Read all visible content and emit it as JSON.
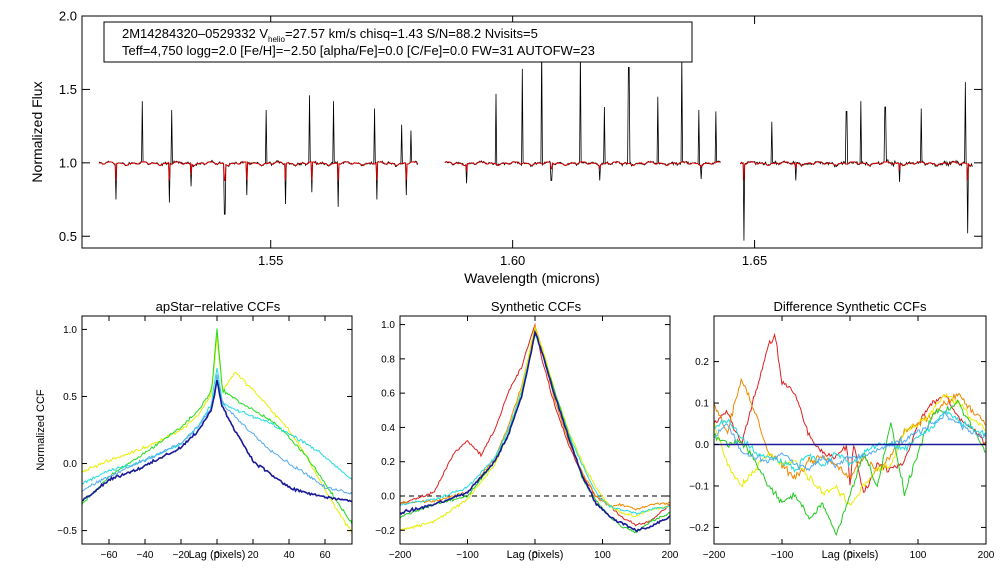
{
  "chart_data": [
    {
      "type": "line",
      "id": "spectrum",
      "info_line1_pre": "2M14284320–0529332  V",
      "info_line1_sub": "helio",
      "info_line1_post": "=27.57 km/s  chisq=1.43  S/N=88.2  Nvisits=5",
      "info_line2": "Teff=4,750 logg=2.0 [Fe/H]=−2.50 [alpha/Fe]=0.0 [C/Fe]=0.0 FW=31 AUTOFW=23",
      "xlabel": "Wavelength (microns)",
      "ylabel": "Normalized Flux",
      "xlim": [
        1.511,
        1.697
      ],
      "ylim": [
        0.42,
        2.0
      ],
      "xticks": [
        1.55,
        1.6,
        1.65
      ],
      "xtick_labels": [
        "1.55",
        "1.60",
        "1.65"
      ],
      "yticks": [
        0.5,
        1.0,
        1.5,
        2.0
      ],
      "ytick_labels": [
        "0.5",
        "1.0",
        "1.5",
        "2.0"
      ],
      "chips": [
        [
          1.5145,
          1.5805
        ],
        [
          1.586,
          1.643
        ],
        [
          1.647,
          1.695
        ]
      ],
      "series": [
        {
          "name": "observed",
          "color": "#000000"
        },
        {
          "name": "model",
          "color": "#d40000"
        }
      ],
      "emission_spikes": [
        [
          1.5235,
          1.42
        ],
        [
          1.5295,
          1.36
        ],
        [
          1.5335,
          1.43
        ],
        [
          1.5405,
          1.35
        ],
        [
          1.549,
          1.36
        ],
        [
          1.553,
          1.38
        ],
        [
          1.558,
          1.46
        ],
        [
          1.563,
          1.42
        ],
        [
          1.5715,
          1.37
        ],
        [
          1.577,
          1.26
        ],
        [
          1.579,
          1.22
        ],
        [
          1.5965,
          1.47
        ],
        [
          1.602,
          1.64
        ],
        [
          1.606,
          1.8
        ],
        [
          1.614,
          1.76
        ],
        [
          1.619,
          1.38
        ],
        [
          1.624,
          1.65
        ],
        [
          1.63,
          1.45
        ],
        [
          1.635,
          1.73
        ],
        [
          1.6385,
          1.36
        ],
        [
          1.642,
          1.35
        ],
        [
          1.6535,
          1.28
        ],
        [
          1.669,
          1.35
        ],
        [
          1.672,
          1.42
        ],
        [
          1.677,
          1.38
        ],
        [
          1.6845,
          1.37
        ],
        [
          1.6935,
          1.55
        ]
      ],
      "absorption_spikes": [
        [
          1.518,
          0.75
        ],
        [
          1.529,
          0.73
        ],
        [
          1.5335,
          0.84
        ],
        [
          1.5405,
          0.65
        ],
        [
          1.545,
          0.78
        ],
        [
          1.553,
          0.72
        ],
        [
          1.5585,
          0.8
        ],
        [
          1.564,
          0.7
        ],
        [
          1.572,
          0.75
        ],
        [
          1.578,
          0.78
        ],
        [
          1.5905,
          0.86
        ],
        [
          1.608,
          0.88
        ],
        [
          1.618,
          0.88
        ],
        [
          1.639,
          0.89
        ],
        [
          1.6478,
          0.47
        ],
        [
          1.6585,
          0.88
        ],
        [
          1.68,
          0.87
        ],
        [
          1.694,
          0.52
        ]
      ]
    },
    {
      "type": "line",
      "id": "apstar_ccf",
      "title": "apStar−relative CCFs",
      "xlabel": "Lag (pixels)",
      "ylabel": "Normalized CCF",
      "xlim": [
        -75,
        75
      ],
      "ylim": [
        -0.6,
        1.1
      ],
      "xticks": [
        -60,
        -40,
        -20,
        0,
        20,
        40,
        60
      ],
      "xtick_labels": [
        "−60",
        "−40",
        "−20",
        "0",
        "20",
        "40",
        "60"
      ],
      "yticks": [
        -0.5,
        0.0,
        0.5,
        1.0
      ],
      "ytick_labels": [
        "−0.5",
        "0.0",
        "0.5",
        "1.0"
      ],
      "series": [
        {
          "name": "yellow",
          "color": "#e8ee00",
          "x": [
            -75,
            -60,
            -40,
            -20,
            -10,
            -3,
            0,
            3,
            6,
            10,
            20,
            30,
            40,
            50,
            60,
            75
          ],
          "y": [
            -0.06,
            0.02,
            0.12,
            0.25,
            0.37,
            0.52,
            0.95,
            0.55,
            0.6,
            0.68,
            0.55,
            0.4,
            0.25,
            0.05,
            -0.2,
            -0.52
          ]
        },
        {
          "name": "green",
          "color": "#22dd22",
          "x": [
            -75,
            -60,
            -40,
            -20,
            -10,
            -3,
            0,
            3,
            10,
            20,
            30,
            40,
            50,
            60,
            75
          ],
          "y": [
            -0.3,
            -0.1,
            0.08,
            0.27,
            0.4,
            0.55,
            1.0,
            0.55,
            0.48,
            0.4,
            0.32,
            0.2,
            0.05,
            -0.15,
            -0.45
          ]
        },
        {
          "name": "cyan",
          "color": "#22dddd",
          "x": [
            -75,
            -60,
            -40,
            -20,
            -10,
            -3,
            0,
            3,
            10,
            20,
            30,
            40,
            50,
            60,
            75
          ],
          "y": [
            -0.15,
            -0.05,
            0.02,
            0.15,
            0.28,
            0.45,
            0.72,
            0.45,
            0.4,
            0.35,
            0.3,
            0.22,
            0.15,
            0.05,
            -0.12
          ]
        },
        {
          "name": "sky",
          "color": "#55aaee",
          "x": [
            -75,
            -60,
            -40,
            -20,
            -10,
            -3,
            0,
            3,
            10,
            20,
            30,
            40,
            50,
            60,
            75
          ],
          "y": [
            -0.2,
            -0.1,
            0.03,
            0.15,
            0.28,
            0.42,
            0.65,
            0.45,
            0.35,
            0.22,
            0.1,
            0.0,
            -0.08,
            -0.18,
            -0.22
          ]
        },
        {
          "name": "navy",
          "color": "#1a1a99",
          "x": [
            -75,
            -60,
            -40,
            -20,
            -10,
            -3,
            0,
            3,
            10,
            20,
            30,
            40,
            50,
            60,
            75
          ],
          "y": [
            -0.28,
            -0.12,
            -0.02,
            0.12,
            0.25,
            0.4,
            0.62,
            0.42,
            0.25,
            0.02,
            -0.08,
            -0.18,
            -0.22,
            -0.25,
            -0.28
          ]
        }
      ]
    },
    {
      "type": "line",
      "id": "synthetic_ccf",
      "title": "Synthetic CCFs",
      "xlabel": "Lag (pixels)",
      "ylabel": "",
      "xlim": [
        -200,
        200
      ],
      "ylim": [
        -0.28,
        1.05
      ],
      "xticks": [
        -200,
        -100,
        0,
        100,
        200
      ],
      "xtick_labels": [
        "−200",
        "−100",
        "0",
        "100",
        "200"
      ],
      "yticks": [
        -0.2,
        0.0,
        0.2,
        0.4,
        0.6,
        0.8,
        1.0
      ],
      "ytick_labels": [
        "−0.2",
        "0.0",
        "0.2",
        "0.4",
        "0.6",
        "0.8",
        "1.0"
      ],
      "zero_line": 0.0,
      "series": [
        {
          "name": "red",
          "color": "#dd2222",
          "x": [
            -200,
            -150,
            -120,
            -100,
            -80,
            -60,
            -40,
            -20,
            -5,
            0,
            10,
            30,
            50,
            70,
            90,
            110,
            130,
            150,
            170,
            200
          ],
          "y": [
            -0.05,
            0.02,
            0.25,
            0.32,
            0.24,
            0.38,
            0.6,
            0.75,
            0.94,
            1.0,
            0.8,
            0.52,
            0.3,
            0.12,
            0.0,
            -0.05,
            -0.13,
            -0.17,
            -0.15,
            -0.05
          ]
        },
        {
          "name": "orange",
          "color": "#ee8800",
          "x": [
            -200,
            -150,
            -100,
            -60,
            -40,
            -20,
            -5,
            0,
            10,
            30,
            50,
            70,
            90,
            110,
            130,
            150,
            170,
            200
          ],
          "y": [
            -0.04,
            -0.03,
            0.02,
            0.22,
            0.4,
            0.64,
            0.88,
            1.0,
            0.86,
            0.55,
            0.32,
            0.14,
            0.0,
            -0.06,
            -0.05,
            -0.08,
            -0.05,
            -0.04
          ]
        },
        {
          "name": "yellow",
          "color": "#e8ee00",
          "x": [
            -200,
            -150,
            -100,
            -60,
            -40,
            -20,
            -5,
            0,
            10,
            30,
            50,
            70,
            90,
            110,
            130,
            150,
            170,
            200
          ],
          "y": [
            -0.2,
            -0.15,
            -0.02,
            0.18,
            0.36,
            0.62,
            0.9,
            0.98,
            0.88,
            0.6,
            0.38,
            0.2,
            0.05,
            -0.06,
            -0.1,
            -0.12,
            -0.08,
            -0.06
          ]
        },
        {
          "name": "green",
          "color": "#22cc22",
          "x": [
            -200,
            -150,
            -100,
            -60,
            -40,
            -20,
            -5,
            0,
            10,
            30,
            50,
            70,
            90,
            110,
            130,
            150,
            170,
            200
          ],
          "y": [
            -0.12,
            -0.05,
            0.0,
            0.2,
            0.36,
            0.58,
            0.86,
            0.95,
            0.85,
            0.6,
            0.36,
            0.1,
            -0.02,
            -0.12,
            -0.18,
            -0.21,
            -0.15,
            -0.1
          ]
        },
        {
          "name": "cyan",
          "color": "#22dddd",
          "x": [
            -200,
            -150,
            -100,
            -60,
            -40,
            -20,
            -5,
            0,
            10,
            30,
            50,
            70,
            90,
            110,
            130,
            150,
            170,
            200
          ],
          "y": [
            -0.05,
            -0.02,
            0.05,
            0.22,
            0.38,
            0.6,
            0.86,
            0.95,
            0.84,
            0.58,
            0.36,
            0.18,
            0.02,
            -0.06,
            -0.08,
            -0.1,
            -0.08,
            -0.06
          ]
        },
        {
          "name": "navy",
          "color": "#1a1a99",
          "x": [
            -200,
            -150,
            -100,
            -60,
            -40,
            -20,
            -5,
            0,
            10,
            30,
            50,
            70,
            90,
            110,
            130,
            150,
            170,
            200
          ],
          "y": [
            -0.1,
            -0.05,
            0.02,
            0.2,
            0.35,
            0.58,
            0.85,
            0.96,
            0.84,
            0.58,
            0.34,
            0.12,
            -0.04,
            -0.12,
            -0.16,
            -0.2,
            -0.18,
            -0.12
          ]
        }
      ]
    },
    {
      "type": "line",
      "id": "diff_synthetic_ccf",
      "title": "Difference Synthetic CCFs",
      "xlabel": "Lag (pixels)",
      "ylabel": "",
      "xlim": [
        -200,
        200
      ],
      "ylim": [
        -0.24,
        0.31
      ],
      "xticks": [
        -200,
        -100,
        0,
        100,
        200
      ],
      "xtick_labels": [
        "−200",
        "−100",
        "0",
        "100",
        "200"
      ],
      "yticks": [
        -0.2,
        -0.1,
        0.0,
        0.1,
        0.2
      ],
      "ytick_labels": [
        "−0.2",
        "−0.1",
        "0.0",
        "0.1",
        "0.2"
      ],
      "zero_line": 0.0,
      "series": [
        {
          "name": "red",
          "color": "#dd2222",
          "x": [
            -200,
            -180,
            -160,
            -140,
            -120,
            -110,
            -100,
            -80,
            -60,
            -40,
            -20,
            -5,
            0,
            5,
            20,
            40,
            60,
            80,
            100,
            120,
            140,
            160,
            180,
            200
          ],
          "y": [
            0.05,
            0.08,
            0.0,
            0.12,
            0.24,
            0.26,
            0.15,
            0.12,
            0.02,
            -0.02,
            -0.03,
            0.0,
            -0.1,
            0.0,
            -0.12,
            -0.05,
            -0.06,
            -0.04,
            0.05,
            0.1,
            0.12,
            0.06,
            0.04,
            0.0
          ]
        },
        {
          "name": "orange",
          "color": "#ee8800",
          "x": [
            -200,
            -180,
            -160,
            -140,
            -120,
            -100,
            -80,
            -60,
            -40,
            -20,
            0,
            20,
            40,
            60,
            80,
            100,
            120,
            140,
            160,
            180,
            200
          ],
          "y": [
            0.1,
            0.03,
            0.16,
            0.08,
            -0.02,
            -0.05,
            -0.08,
            -0.04,
            -0.03,
            -0.05,
            -0.08,
            -0.03,
            -0.06,
            -0.03,
            0.03,
            0.05,
            0.07,
            0.1,
            0.12,
            0.08,
            0.05
          ]
        },
        {
          "name": "yellow",
          "color": "#e8ee00",
          "x": [
            -200,
            -180,
            -160,
            -140,
            -120,
            -100,
            -80,
            -60,
            -40,
            -20,
            0,
            20,
            40,
            60,
            80,
            100,
            120,
            140,
            160,
            180,
            200
          ],
          "y": [
            0.05,
            -0.05,
            -0.1,
            -0.06,
            -0.02,
            -0.05,
            -0.04,
            -0.08,
            -0.12,
            -0.1,
            -0.15,
            -0.1,
            -0.06,
            -0.05,
            0.03,
            0.05,
            0.08,
            0.12,
            0.1,
            0.06,
            0.04
          ]
        },
        {
          "name": "green",
          "color": "#22cc22",
          "x": [
            -200,
            -180,
            -160,
            -140,
            -120,
            -100,
            -80,
            -60,
            -40,
            -20,
            0,
            20,
            40,
            60,
            80,
            100,
            120,
            140,
            160,
            180,
            200
          ],
          "y": [
            0.02,
            0.0,
            0.01,
            -0.04,
            -0.1,
            -0.14,
            -0.12,
            -0.18,
            -0.14,
            -0.22,
            -0.12,
            -0.02,
            -0.1,
            0.05,
            -0.12,
            -0.02,
            0.07,
            0.08,
            0.1,
            0.04,
            -0.02
          ]
        },
        {
          "name": "cyan",
          "color": "#22dddd",
          "x": [
            -200,
            -180,
            -160,
            -140,
            -120,
            -100,
            -80,
            -60,
            -40,
            -20,
            0,
            20,
            40,
            60,
            80,
            100,
            120,
            140,
            160,
            180,
            200
          ],
          "y": [
            0.04,
            0.06,
            0.02,
            -0.02,
            -0.03,
            -0.04,
            -0.06,
            -0.02,
            -0.05,
            -0.02,
            -0.05,
            -0.02,
            0.0,
            0.0,
            -0.01,
            0.02,
            0.04,
            0.08,
            0.06,
            0.04,
            0.02
          ]
        },
        {
          "name": "sky",
          "color": "#55aaee",
          "x": [
            -200,
            -180,
            -160,
            -140,
            -120,
            -100,
            -80,
            -60,
            -40,
            -20,
            0,
            20,
            40,
            60,
            80,
            100,
            120,
            140,
            160,
            180,
            200
          ],
          "y": [
            0.02,
            0.05,
            -0.02,
            -0.03,
            -0.04,
            -0.02,
            -0.05,
            -0.06,
            -0.03,
            -0.05,
            -0.03,
            -0.03,
            -0.01,
            0.0,
            0.01,
            0.03,
            0.05,
            0.07,
            0.05,
            0.03,
            0.02
          ]
        },
        {
          "name": "navy",
          "color": "#1a1a99",
          "x": [
            -200,
            200
          ],
          "y": [
            0.0,
            0.0
          ]
        }
      ]
    }
  ]
}
